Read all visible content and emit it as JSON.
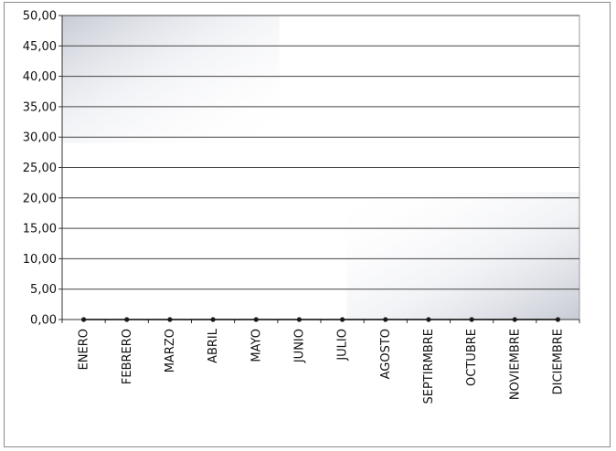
{
  "chart_data": {
    "type": "line",
    "title": "",
    "xlabel": "",
    "ylabel": "",
    "categories": [
      "ENERO",
      "FEBRERO",
      "MARZO",
      "ABRIL",
      "MAYO",
      "JUNIO",
      "JULIO",
      "AGOSTO",
      "SEPTIRMBRE",
      "OCTUBRE",
      "NOVIEMBRE",
      "DICIEMBRE"
    ],
    "series": [
      {
        "values": [
          0,
          0,
          0,
          0,
          0,
          0,
          0,
          0,
          0,
          0,
          0,
          0
        ]
      }
    ],
    "ylim": [
      0,
      50
    ],
    "yticks": [
      0,
      5,
      10,
      15,
      20,
      25,
      30,
      35,
      40,
      45,
      50
    ],
    "ytick_labels": [
      "0,00",
      "5,00",
      "10,00",
      "15,00",
      "20,00",
      "25,00",
      "30,00",
      "35,00",
      "40,00",
      "45,00",
      "50,00"
    ],
    "grid": true,
    "legend": "none",
    "colors": {
      "line": "#000000",
      "marker": "#1a1a1a",
      "grid": "#444444",
      "plot_border": "#9a9a9a",
      "shade": "#c9cdd8"
    }
  }
}
